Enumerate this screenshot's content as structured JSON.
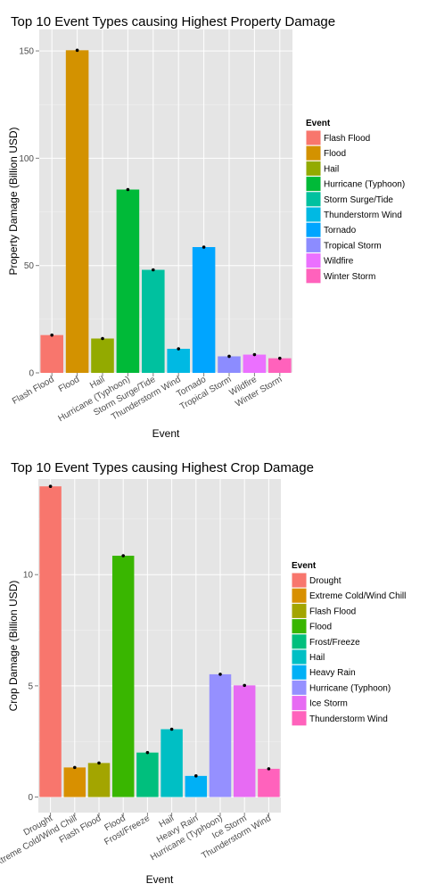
{
  "chart_data": [
    {
      "type": "bar",
      "title": "Top 10 Event Types causing Highest Property Damage",
      "xlabel": "Event",
      "ylabel": "Property Damage (Billion USD)",
      "ylim": [
        0,
        160
      ],
      "yticks": [
        0,
        50,
        100,
        150
      ],
      "grid": true,
      "legend_title": "Event",
      "legend_position": "right",
      "categories": [
        "Flash Flood",
        "Flood",
        "Hail",
        "Hurricane (Typhoon)",
        "Storm Surge/Tide",
        "Thunderstorm Wind",
        "Tornado",
        "Tropical Storm",
        "Wildfire",
        "Winter Storm"
      ],
      "values": [
        17.6,
        150.3,
        16.0,
        85.4,
        48.0,
        11.2,
        58.6,
        7.7,
        8.5,
        6.8
      ],
      "colors": [
        "#F8766D",
        "#D39200",
        "#93AA00",
        "#00BA38",
        "#00C19F",
        "#00B9E3",
        "#00A5FF",
        "#8C8CFF",
        "#EB70FF",
        "#FF62BC"
      ]
    },
    {
      "type": "bar",
      "title": "Top 10 Event Types causing Highest Crop Damage",
      "xlabel": "Event",
      "ylabel": "Crop Damage (Billion USD)",
      "ylim": [
        -0.7,
        14.3
      ],
      "yticks": [
        0,
        5,
        10
      ],
      "grid": true,
      "legend_title": "Event",
      "legend_position": "right",
      "categories": [
        "Drought",
        "Extreme Cold/Wind Chill",
        "Flash Flood",
        "Flood",
        "Frost/Freeze",
        "Hail",
        "Heavy Rain",
        "Hurricane (Typhoon)",
        "Ice Storm",
        "Thunderstorm Wind"
      ],
      "values": [
        13.97,
        1.33,
        1.53,
        10.85,
        2.0,
        3.05,
        0.95,
        5.52,
        5.02,
        1.27
      ],
      "colors": [
        "#F8766D",
        "#D89000",
        "#A3A500",
        "#39B600",
        "#00BF7D",
        "#00BFC4",
        "#00B0F6",
        "#9590FF",
        "#E76BF3",
        "#FF62BC"
      ]
    }
  ]
}
